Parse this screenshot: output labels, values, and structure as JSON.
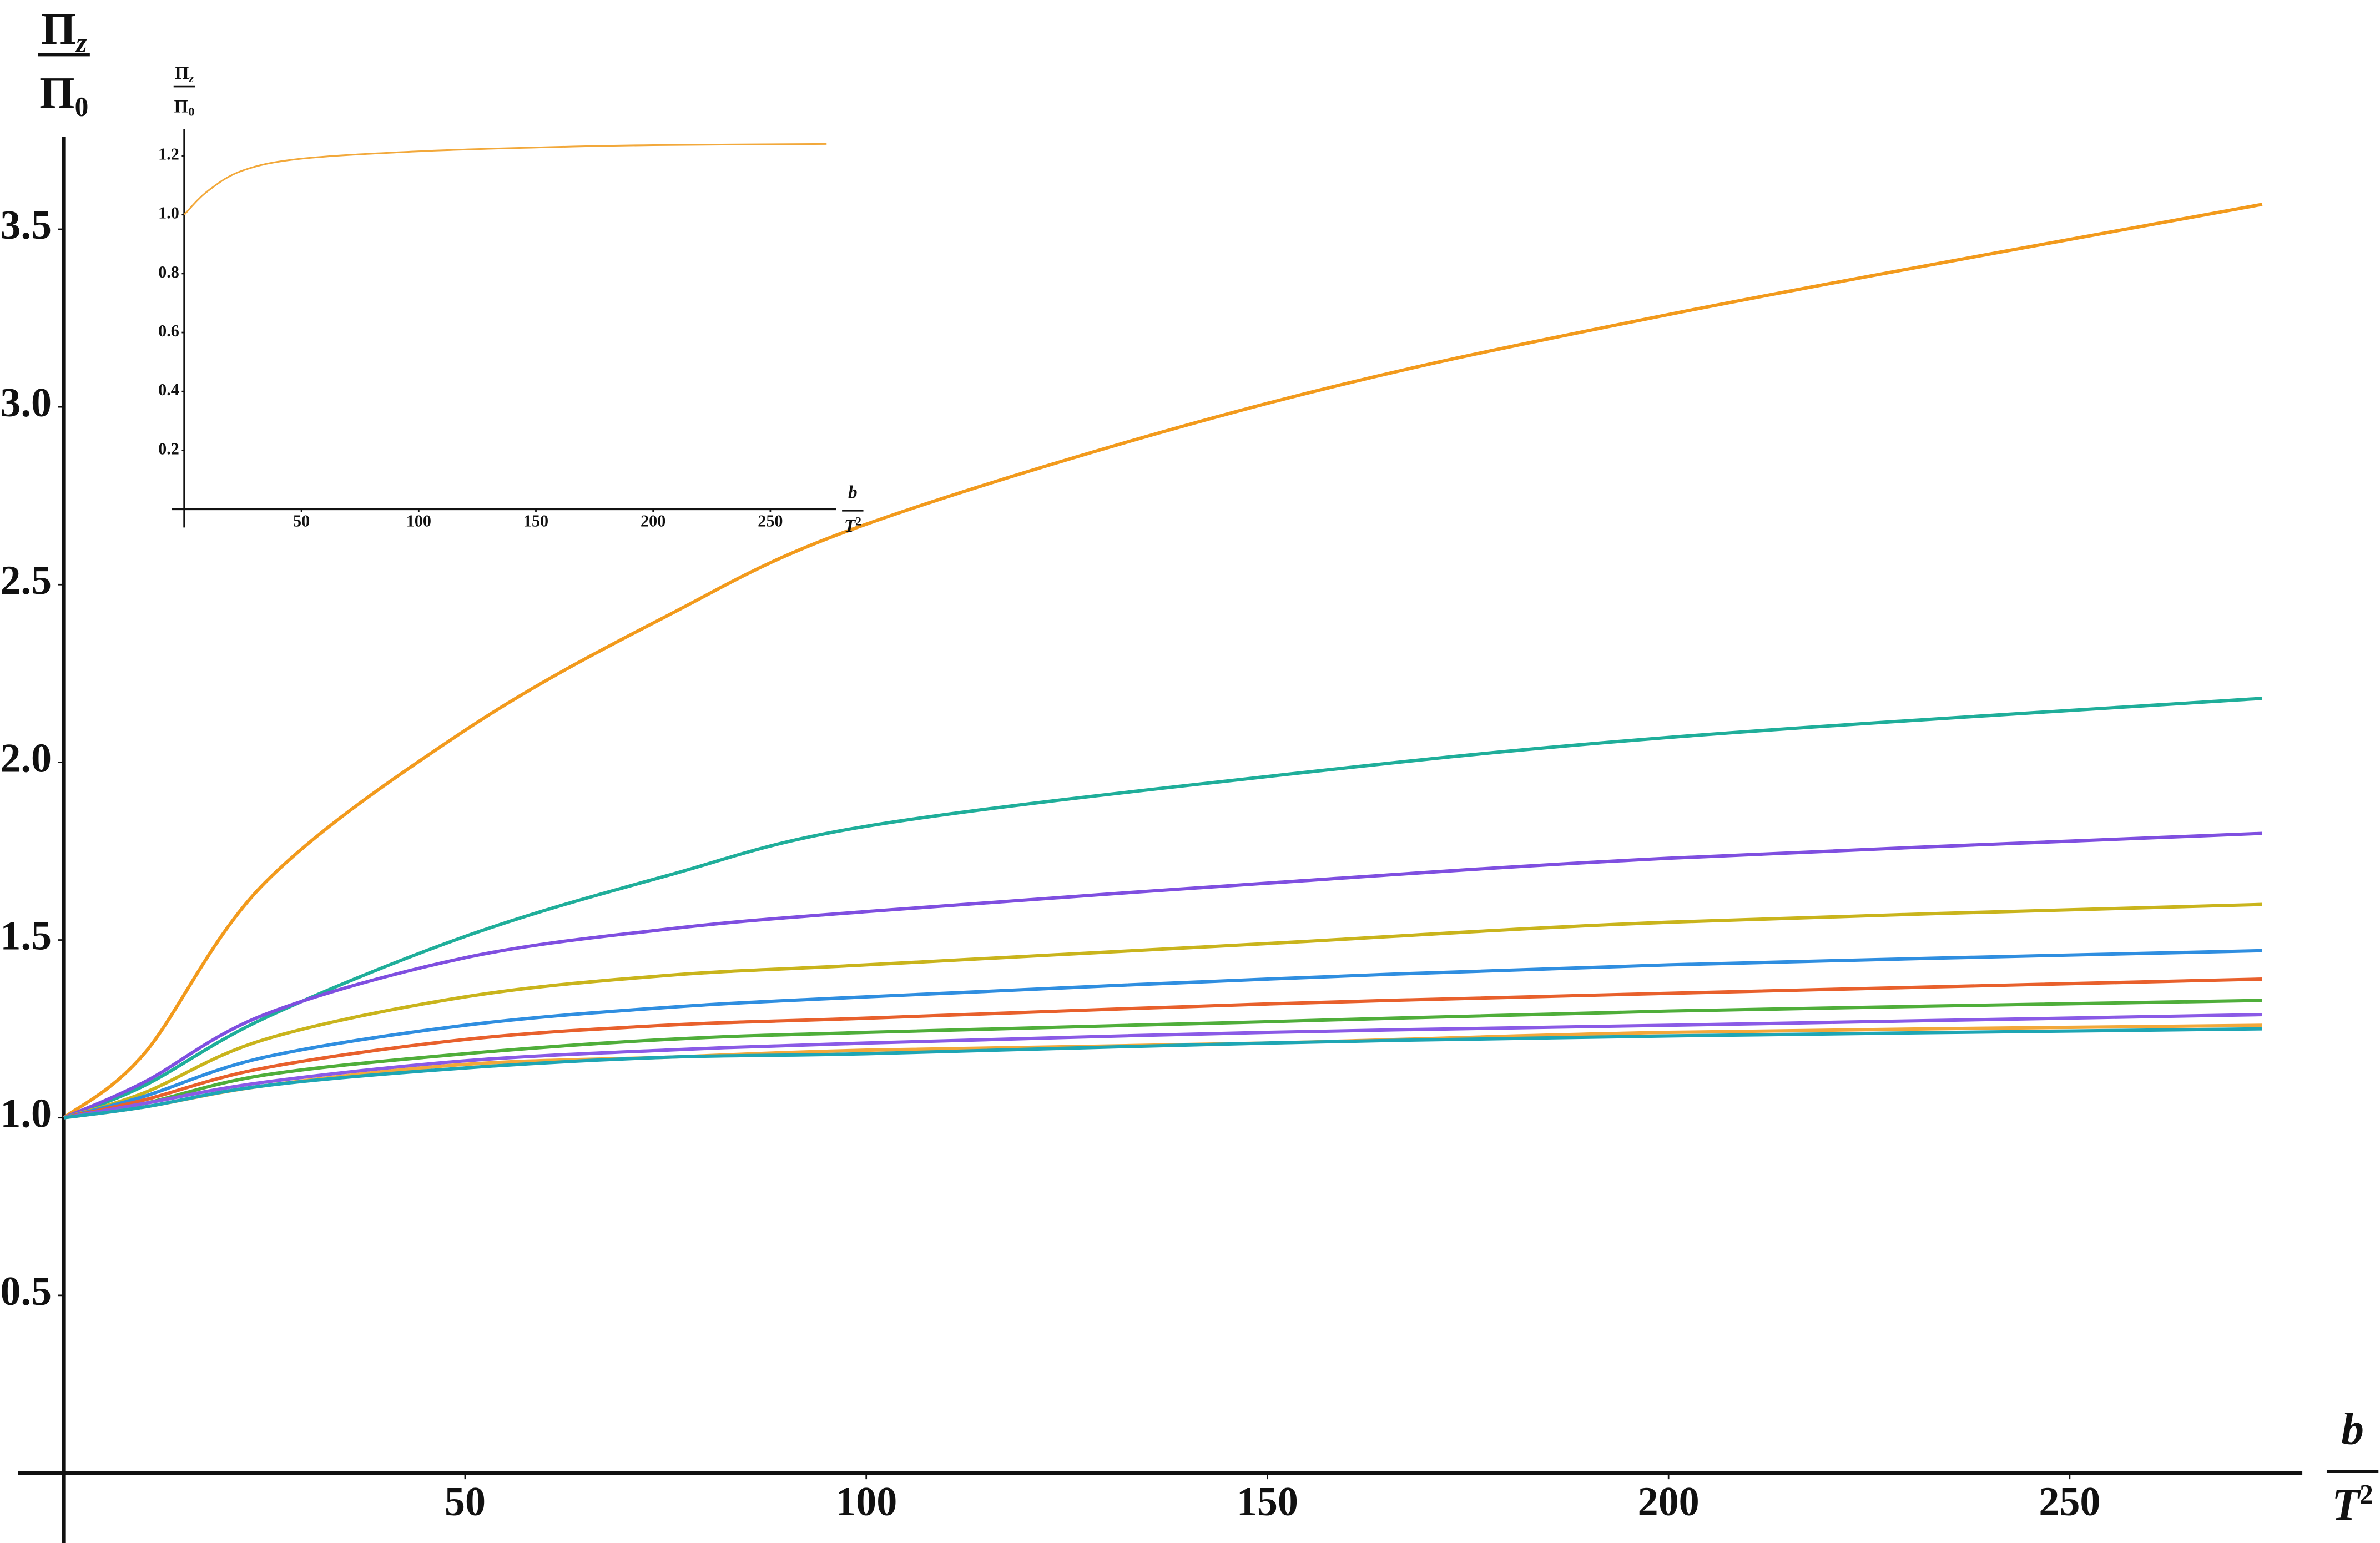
{
  "chart_data": [
    {
      "type": "line",
      "xlabel": {
        "top": "b",
        "bottom": [
          "T",
          "2"
        ]
      },
      "ylabel": {
        "top": [
          "Π",
          "z"
        ],
        "bottom": [
          "Π",
          "0"
        ]
      },
      "x": [
        0,
        10,
        25,
        50,
        75,
        100,
        150,
        200,
        274
      ],
      "series": [
        {
          "color": "#f29a1c",
          "values": [
            1,
            1.18,
            1.66,
            2.09,
            2.41,
            2.67,
            3.01,
            3.26,
            3.57
          ]
        },
        {
          "color": "#1fae9a",
          "values": [
            1,
            1.09,
            1.28,
            1.51,
            1.68,
            1.82,
            1.96,
            2.07,
            2.18
          ]
        },
        {
          "color": "#7f4fe0",
          "values": [
            1,
            1.1,
            1.29,
            1.45,
            1.53,
            1.58,
            1.66,
            1.73,
            1.8
          ]
        },
        {
          "color": "#c9b41c",
          "values": [
            1,
            1.07,
            1.22,
            1.34,
            1.4,
            1.43,
            1.49,
            1.55,
            1.6
          ]
        },
        {
          "color": "#2f8ee0",
          "values": [
            1,
            1.06,
            1.17,
            1.26,
            1.31,
            1.34,
            1.39,
            1.43,
            1.47
          ]
        },
        {
          "color": "#e8602c",
          "values": [
            1,
            1.05,
            1.14,
            1.22,
            1.26,
            1.28,
            1.32,
            1.35,
            1.39
          ]
        },
        {
          "color": "#4fae3a",
          "values": [
            1,
            1.04,
            1.12,
            1.18,
            1.22,
            1.24,
            1.27,
            1.3,
            1.33
          ]
        },
        {
          "color": "#8a5ae6",
          "values": [
            1,
            1.04,
            1.1,
            1.16,
            1.19,
            1.21,
            1.24,
            1.26,
            1.29
          ]
        },
        {
          "color": "#f2a83a",
          "values": [
            1,
            1.03,
            1.09,
            1.15,
            1.17,
            1.19,
            1.21,
            1.24,
            1.26
          ]
        },
        {
          "color": "#1ea6b4",
          "values": [
            1,
            1.03,
            1.09,
            1.14,
            1.17,
            1.18,
            1.21,
            1.23,
            1.25
          ]
        }
      ],
      "xlim": [
        0,
        279
      ],
      "ylim": [
        0,
        3.76
      ],
      "xticks": [
        50,
        100,
        150,
        200,
        250
      ],
      "yticks": [
        0.5,
        {
          "value": 1,
          "label": "1.0"
        },
        1.5,
        {
          "value": 2,
          "label": "2.0"
        },
        2.5,
        {
          "value": 3,
          "label": "3.0"
        },
        3.5
      ]
    },
    {
      "type": "line",
      "xlabel": {
        "top": "b",
        "bottom": [
          "T",
          "2"
        ]
      },
      "ylabel": {
        "top": [
          "Π",
          "z"
        ],
        "bottom": [
          "Π",
          "0"
        ]
      },
      "x": [
        0,
        10,
        25,
        50,
        100,
        150,
        200,
        274
      ],
      "series": [
        {
          "color": "#f2a83a",
          "values": [
            1,
            1.08,
            1.15,
            1.19,
            1.215,
            1.228,
            1.236,
            1.24
          ]
        }
      ],
      "xlim": [
        0,
        278
      ],
      "ylim": [
        0,
        1.29
      ],
      "xticks": [
        50,
        100,
        150,
        200,
        250
      ],
      "yticks": [
        0.2,
        0.4,
        0.6,
        0.8,
        {
          "value": 1,
          "label": "1.0"
        },
        1.2
      ]
    }
  ]
}
